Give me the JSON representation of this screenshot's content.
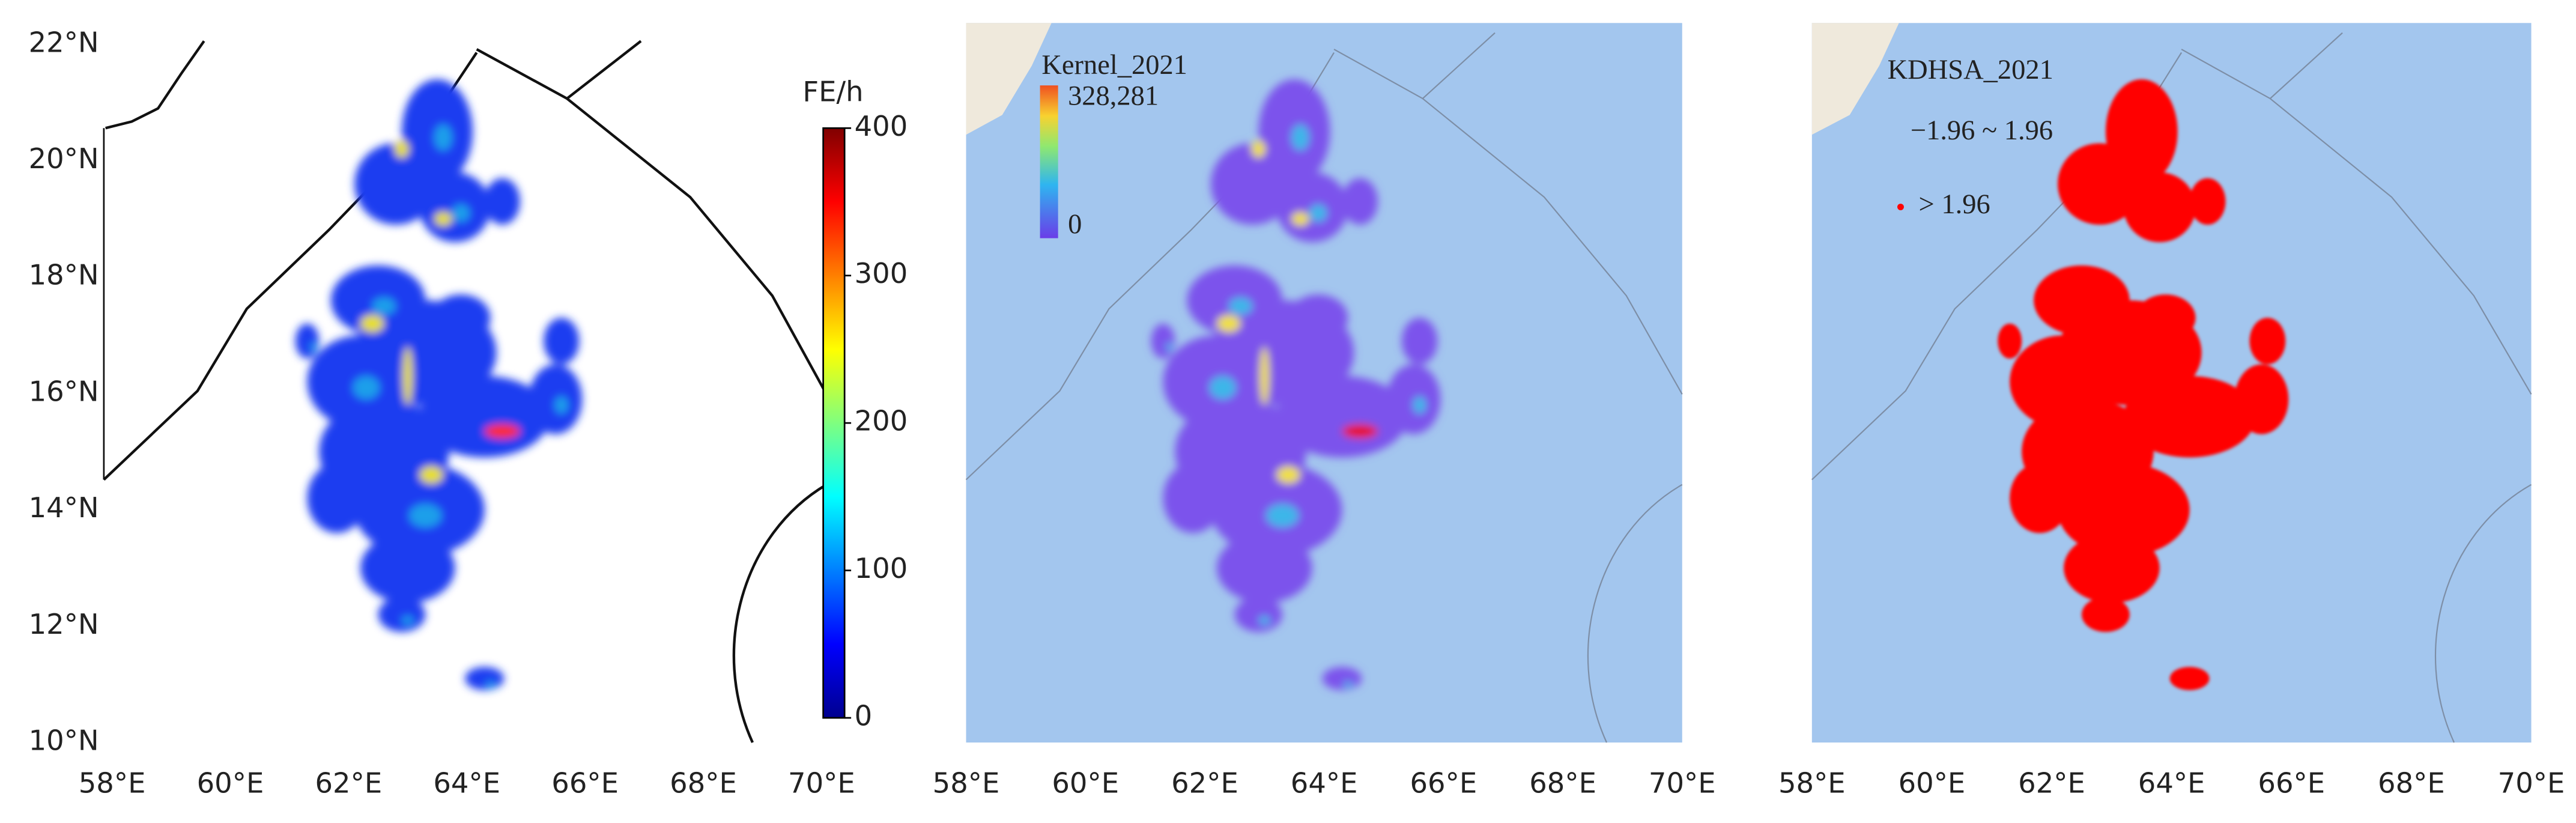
{
  "panels": [
    {
      "lat_labels": [
        "22°N",
        "20°N",
        "18°N",
        "16°N",
        "14°N",
        "12°N",
        "10°N"
      ],
      "lon_labels": [
        "58°E",
        "60°E",
        "62°E",
        "64°E",
        "66°E",
        "68°E",
        "70°E"
      ],
      "colorbar": {
        "title": "FE/h",
        "ticks": [
          0,
          100,
          200,
          300,
          400
        ]
      }
    },
    {
      "lon_labels": [
        "58°E",
        "60°E",
        "62°E",
        "64°E",
        "66°E",
        "68°E",
        "70°E"
      ],
      "legend": {
        "title": "Kernel_2021",
        "max": "328,281",
        "min": 0
      }
    },
    {
      "lon_labels": [
        "58°E",
        "60°E",
        "62°E",
        "64°E",
        "66°E",
        "68°E",
        "70°E"
      ],
      "legend": {
        "title": "KDHSA_2021",
        "items": [
          "−1.96 ~ 1.96",
          "> 1.96"
        ]
      }
    }
  ]
}
